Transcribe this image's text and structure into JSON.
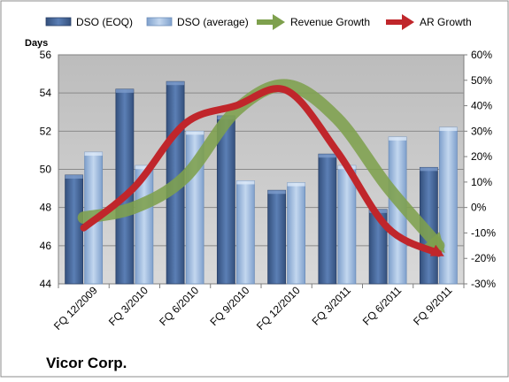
{
  "company_label": "Vicor Corp.",
  "chart_data": {
    "type": "bar",
    "categories": [
      "FQ 12/2009",
      "FQ 3/2010",
      "FQ 6/2010",
      "FQ 9/2010",
      "FQ 12/2010",
      "FQ 3/2011",
      "FQ 6/2011",
      "FQ 9/2011"
    ],
    "ylabel": "Days",
    "ylim": [
      44,
      56
    ],
    "yticks": [
      44,
      46,
      48,
      50,
      52,
      54,
      56
    ],
    "y2lim": [
      -30,
      60
    ],
    "y2ticks": [
      "-30%",
      "-20%",
      "-10%",
      "0%",
      "10%",
      "20%",
      "30%",
      "40%",
      "50%",
      "60%"
    ],
    "grid": true,
    "legend_position": "top",
    "series": [
      {
        "name": "DSO (EOQ)",
        "kind": "bar",
        "axis": "left",
        "color": "#4a6a9c",
        "values": [
          49.7,
          54.2,
          54.6,
          52.8,
          48.9,
          50.8,
          47.9,
          50.1
        ]
      },
      {
        "name": "DSO (average)",
        "kind": "bar",
        "axis": "left",
        "color": "#a9c4e6",
        "values": [
          50.9,
          50.2,
          52.0,
          49.4,
          49.3,
          50.2,
          51.7,
          52.2
        ]
      },
      {
        "name": "Revenue Growth",
        "kind": "line",
        "axis": "right",
        "color": "#7ea04d",
        "values": [
          -4,
          0,
          12,
          38,
          48,
          35,
          8,
          -15
        ]
      },
      {
        "name": "AR Growth",
        "kind": "line",
        "axis": "right",
        "color": "#c0262b",
        "values": [
          -8,
          8,
          33,
          40,
          46,
          22,
          -8,
          -18
        ]
      }
    ]
  }
}
